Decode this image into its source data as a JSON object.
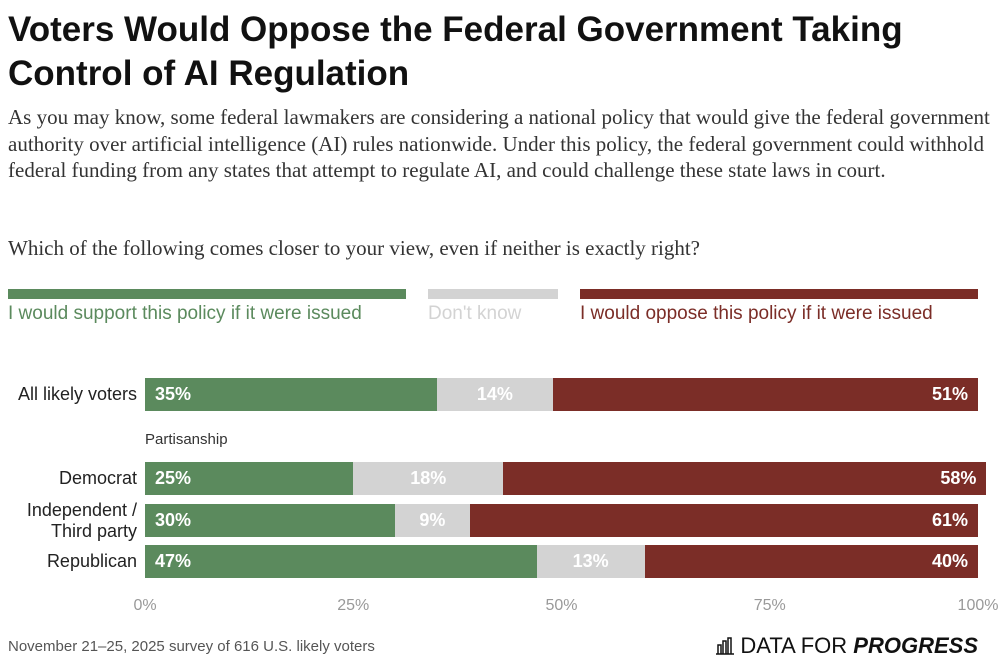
{
  "chart_data": {
    "type": "stacked-bar-horizontal",
    "title": "Voters Would Oppose the Federal Government Taking Control of AI Regulation",
    "subtitle": "As you may know, some federal lawmakers are considering a national policy that would give the federal government authority over artificial intelligence (AI) rules nationwide. Under this policy, the federal government could withhold federal funding from any states that attempt to regulate AI, and could challenge these state laws in court.",
    "question": "Which of the following comes closer to your view, even if neither is exactly right?",
    "categories": [
      "All likely voters",
      "Democrat",
      "Independent / Third party",
      "Republican"
    ],
    "group_label": "Partisanship",
    "series": [
      {
        "name": "I would support this policy if it were issued",
        "color": "#5b8a5d",
        "values": [
          35,
          25,
          30,
          47
        ],
        "value_labels": [
          "35%",
          "25%",
          "30%",
          "47%"
        ]
      },
      {
        "name": "Don't know",
        "color": "#d3d3d3",
        "values": [
          14,
          18,
          9,
          13
        ],
        "value_labels": [
          "14%",
          "18%",
          "9%",
          "13%"
        ]
      },
      {
        "name": "I would oppose this policy if it were issued",
        "color": "#7b2d27",
        "values": [
          51,
          58,
          61,
          40
        ],
        "value_labels": [
          "51%",
          "58%",
          "61%",
          "40%"
        ]
      }
    ],
    "xlim": [
      0,
      100
    ],
    "xticks": [
      {
        "value": 0,
        "label": "0%"
      },
      {
        "value": 25,
        "label": "25%"
      },
      {
        "value": 50,
        "label": "50%"
      },
      {
        "value": 75,
        "label": "75%"
      },
      {
        "value": 100,
        "label": "100%"
      }
    ],
    "note": "November 21–25, 2025 survey of 616 U.S. likely voters",
    "brand": [
      "DATA FOR",
      "PROGRESS"
    ]
  }
}
